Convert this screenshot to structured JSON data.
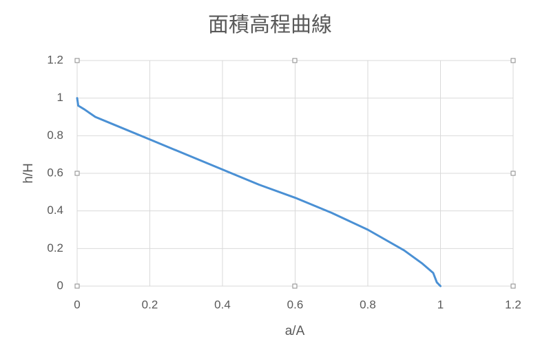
{
  "chart_data": {
    "type": "line",
    "title": "面積高程曲線",
    "x_label": "a/A",
    "y_label": "h/H",
    "x": [
      0,
      0.003,
      0.02,
      0.05,
      0.1,
      0.2,
      0.3,
      0.4,
      0.5,
      0.6,
      0.7,
      0.8,
      0.9,
      0.95,
      0.98,
      0.99,
      1
    ],
    "values": [
      1,
      0.96,
      0.94,
      0.9,
      0.86,
      0.78,
      0.7,
      0.62,
      0.54,
      0.47,
      0.39,
      0.3,
      0.19,
      0.12,
      0.07,
      0.02,
      0
    ],
    "color": "#4a90d4",
    "xlim": [
      0,
      1.2
    ],
    "xticks": [
      0,
      0.2,
      0.4,
      0.6,
      0.8,
      1,
      1.2
    ],
    "ylim": [
      0,
      1.2
    ],
    "yticks": [
      0,
      0.2,
      0.4,
      0.6,
      0.8,
      1,
      1.2
    ],
    "grid": true
  }
}
